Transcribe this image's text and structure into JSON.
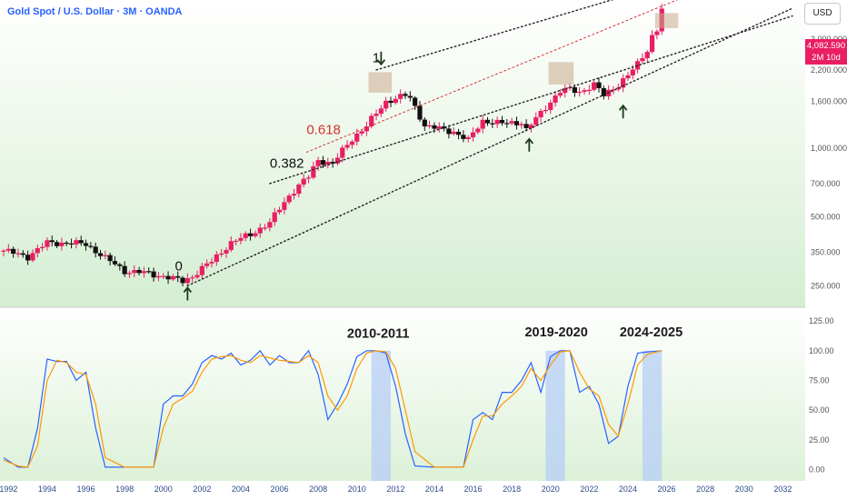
{
  "header": {
    "title": "Gold Spot / U.S. Dollar · 3M · OANDA",
    "currency": "USD",
    "last_price": "4,082.590",
    "countdown": "2M 10d"
  },
  "colors": {
    "up": "#e91e63",
    "down": "#111111",
    "stoch_k": "#2962ff",
    "stoch_d": "#ff9800",
    "highlight_box": "#c8a98a",
    "fib_red": "#d32f2f"
  },
  "chart_data": [
    {
      "type": "candlestick",
      "scale": "log",
      "title": "Gold Spot / U.S. Dollar · 3M · OANDA",
      "y_ticks": [
        "3,000.000",
        "2,200.000",
        "1,600.000",
        "1,000.000",
        "700.000",
        "500.000",
        "350.000",
        "250.000"
      ],
      "y_tick_values": [
        3000,
        2200,
        1600,
        1000,
        700,
        500,
        350,
        250
      ],
      "ylim": [
        205,
        4450
      ],
      "xlim": [
        1991.75,
        2032.5
      ],
      "x_ticks": [
        "1992",
        "1994",
        "1996",
        "1998",
        "2000",
        "2002",
        "2004",
        "2006",
        "2008",
        "2010",
        "2012",
        "2014",
        "2016",
        "2018",
        "2020",
        "2022",
        "2024",
        "2026",
        "2028",
        "2030",
        "2032"
      ],
      "x_tick_values": [
        1992,
        1994,
        1996,
        1998,
        2000,
        2002,
        2004,
        2006,
        2008,
        2010,
        2012,
        2014,
        2016,
        2018,
        2020,
        2022,
        2024,
        2026,
        2028,
        2030,
        2032
      ],
      "close_anchors": [
        [
          1991.75,
          356
        ],
        [
          1993.0,
          335
        ],
        [
          1994.0,
          385
        ],
        [
          1995.0,
          385
        ],
        [
          1996.0,
          380
        ],
        [
          1997.0,
          330
        ],
        [
          1998.0,
          290
        ],
        [
          1999.0,
          285
        ],
        [
          2000.0,
          275
        ],
        [
          2001.0,
          262
        ],
        [
          2001.5,
          275
        ],
        [
          2002.5,
          320
        ],
        [
          2003.5,
          385
        ],
        [
          2004.5,
          420
        ],
        [
          2005.5,
          470
        ],
        [
          2006.5,
          620
        ],
        [
          2007.5,
          750
        ],
        [
          2008.0,
          890
        ],
        [
          2008.75,
          850
        ],
        [
          2009.75,
          1100
        ],
        [
          2010.5,
          1250
        ],
        [
          2011.0,
          1420
        ],
        [
          2011.5,
          1600
        ],
        [
          2012.5,
          1700
        ],
        [
          2012.75,
          1650
        ],
        [
          2013.5,
          1250
        ],
        [
          2015.0,
          1180
        ],
        [
          2015.75,
          1080
        ],
        [
          2016.5,
          1320
        ],
        [
          2017.5,
          1280
        ],
        [
          2018.5,
          1300
        ],
        [
          2018.75,
          1200
        ],
        [
          2019.5,
          1420
        ],
        [
          2020.5,
          1780
        ],
        [
          2021.0,
          1800
        ],
        [
          2021.5,
          1760
        ],
        [
          2022.25,
          1900
        ],
        [
          2022.75,
          1700
        ],
        [
          2023.5,
          1900
        ],
        [
          2024.0,
          2080
        ],
        [
          2024.5,
          2330
        ],
        [
          2025.0,
          2700
        ],
        [
          2025.25,
          3100
        ],
        [
          2025.5,
          3300
        ],
        [
          2025.75,
          4082
        ]
      ],
      "fib_labels": [
        {
          "text": "0",
          "x": 2000.6,
          "y": 292
        },
        {
          "text": "0.382",
          "x": 2005.5,
          "y": 820
        },
        {
          "text": "0.618",
          "x": 2007.4,
          "y": 1150
        },
        {
          "text": "1",
          "x": 2010.8,
          "y": 2380
        }
      ],
      "arrows": [
        {
          "dir": "up",
          "x": 2001.25,
          "y": 230
        },
        {
          "dir": "down",
          "x": 2011.25,
          "y": 2480
        },
        {
          "dir": "up",
          "x": 2018.9,
          "y": 1030
        },
        {
          "dir": "up",
          "x": 2023.75,
          "y": 1440
        }
      ],
      "boxes": [
        {
          "x0": 2010.6,
          "x1": 2011.8,
          "y0": 1750,
          "y1": 2150
        },
        {
          "x0": 2019.9,
          "x1": 2021.2,
          "y0": 1900,
          "y1": 2380
        },
        {
          "x0": 2025.4,
          "x1": 2026.6,
          "y0": 3350,
          "y1": 3900
        }
      ],
      "channel_lines": [
        {
          "name": "lower",
          "style": "dotted-black",
          "p1": [
            2001.25,
            250
          ],
          "p2": [
            2018.5,
            1170
          ]
        },
        {
          "name": "middle",
          "style": "dotted-black",
          "p1": [
            2005.5,
            700
          ],
          "p2": [
            2016,
            1350
          ]
        },
        {
          "name": "upper",
          "style": "dotted-black",
          "p1": [
            2011.0,
            2200
          ],
          "p2": [
            2025.5,
            5100
          ]
        },
        {
          "name": "fib-618",
          "style": "dotted-red",
          "p1": [
            2007.4,
            960
          ],
          "p2": [
            2025.5,
            4100
          ]
        }
      ]
    },
    {
      "type": "line",
      "title": "",
      "y_ticks": [
        "125.00",
        "100.00",
        "75.00",
        "50.00",
        "25.00",
        "0.00"
      ],
      "y_tick_values": [
        125,
        100,
        75,
        50,
        25,
        0
      ],
      "ylim": [
        -8,
        132
      ],
      "annotations": [
        {
          "text": "2010-2011",
          "x": 2011.1,
          "y": 111
        },
        {
          "text": "2019-2020",
          "x": 2020.3,
          "y": 112
        },
        {
          "text": "2024-2025",
          "x": 2025.2,
          "y": 112
        }
      ],
      "highlight_bands": [
        {
          "x0": 2010.75,
          "x1": 2011.75
        },
        {
          "x0": 2019.75,
          "x1": 2020.75
        },
        {
          "x0": 2024.75,
          "x1": 2025.75
        }
      ],
      "series": [
        {
          "key": "K",
          "anchors": [
            [
              1991.75,
              10
            ],
            [
              1992.5,
              2
            ],
            [
              1993.0,
              2
            ],
            [
              1993.5,
              35
            ],
            [
              1994.0,
              93
            ],
            [
              1994.5,
              91
            ],
            [
              1995.0,
              91
            ],
            [
              1995.5,
              75
            ],
            [
              1996.0,
              82
            ],
            [
              1996.5,
              35
            ],
            [
              1997.0,
              2
            ],
            [
              1998.0,
              2
            ],
            [
              1999.0,
              2
            ],
            [
              1999.5,
              2
            ],
            [
              2000.0,
              55
            ],
            [
              2000.5,
              62
            ],
            [
              2001.0,
              62
            ],
            [
              2001.5,
              72
            ],
            [
              2002.0,
              90
            ],
            [
              2002.5,
              96
            ],
            [
              2003.0,
              93
            ],
            [
              2003.5,
              98
            ],
            [
              2004.0,
              88
            ],
            [
              2004.5,
              92
            ],
            [
              2005.0,
              100
            ],
            [
              2005.5,
              88
            ],
            [
              2006.0,
              96
            ],
            [
              2006.5,
              90
            ],
            [
              2007.0,
              90
            ],
            [
              2007.5,
              100
            ],
            [
              2008.0,
              80
            ],
            [
              2008.5,
              42
            ],
            [
              2009.0,
              55
            ],
            [
              2009.5,
              72
            ],
            [
              2010.0,
              95
            ],
            [
              2010.5,
              100
            ],
            [
              2011.0,
              100
            ],
            [
              2011.5,
              98
            ],
            [
              2012.0,
              70
            ],
            [
              2012.5,
              30
            ],
            [
              2013.0,
              3
            ],
            [
              2014.0,
              2
            ],
            [
              2015.0,
              2
            ],
            [
              2015.5,
              2
            ],
            [
              2016.0,
              42
            ],
            [
              2016.5,
              48
            ],
            [
              2017.0,
              42
            ],
            [
              2017.5,
              65
            ],
            [
              2018.0,
              65
            ],
            [
              2018.5,
              75
            ],
            [
              2019.0,
              90
            ],
            [
              2019.5,
              65
            ],
            [
              2020.0,
              95
            ],
            [
              2020.5,
              100
            ],
            [
              2021.0,
              100
            ],
            [
              2021.5,
              65
            ],
            [
              2022.0,
              70
            ],
            [
              2022.5,
              55
            ],
            [
              2023.0,
              22
            ],
            [
              2023.5,
              28
            ],
            [
              2024.0,
              70
            ],
            [
              2024.5,
              98
            ],
            [
              2025.0,
              99
            ],
            [
              2025.75,
              100
            ]
          ]
        },
        {
          "key": "D",
          "anchors": [
            [
              1991.75,
              8
            ],
            [
              1992.5,
              3
            ],
            [
              1993.0,
              2
            ],
            [
              1993.5,
              20
            ],
            [
              1994.0,
              75
            ],
            [
              1994.5,
              92
            ],
            [
              1995.0,
              90
            ],
            [
              1995.5,
              82
            ],
            [
              1996.0,
              80
            ],
            [
              1996.5,
              55
            ],
            [
              1997.0,
              10
            ],
            [
              1998.0,
              2
            ],
            [
              1999.0,
              2
            ],
            [
              1999.5,
              2
            ],
            [
              2000.0,
              35
            ],
            [
              2000.5,
              55
            ],
            [
              2001.0,
              60
            ],
            [
              2001.5,
              66
            ],
            [
              2002.0,
              82
            ],
            [
              2002.5,
              93
            ],
            [
              2003.0,
              95
            ],
            [
              2003.5,
              96
            ],
            [
              2004.0,
              92
            ],
            [
              2004.5,
              90
            ],
            [
              2005.0,
              96
            ],
            [
              2005.5,
              94
            ],
            [
              2006.0,
              92
            ],
            [
              2006.5,
              91
            ],
            [
              2007.0,
              90
            ],
            [
              2007.5,
              96
            ],
            [
              2008.0,
              90
            ],
            [
              2008.5,
              62
            ],
            [
              2009.0,
              50
            ],
            [
              2009.5,
              62
            ],
            [
              2010.0,
              85
            ],
            [
              2010.5,
              98
            ],
            [
              2011.0,
              100
            ],
            [
              2011.5,
              99
            ],
            [
              2012.0,
              85
            ],
            [
              2012.5,
              50
            ],
            [
              2013.0,
              15
            ],
            [
              2014.0,
              2
            ],
            [
              2015.0,
              2
            ],
            [
              2015.5,
              2
            ],
            [
              2016.0,
              25
            ],
            [
              2016.5,
              45
            ],
            [
              2017.0,
              45
            ],
            [
              2017.5,
              55
            ],
            [
              2018.0,
              62
            ],
            [
              2018.5,
              70
            ],
            [
              2019.0,
              85
            ],
            [
              2019.5,
              75
            ],
            [
              2020.0,
              88
            ],
            [
              2020.5,
              99
            ],
            [
              2021.0,
              100
            ],
            [
              2021.5,
              82
            ],
            [
              2022.0,
              68
            ],
            [
              2022.5,
              62
            ],
            [
              2023.0,
              38
            ],
            [
              2023.5,
              28
            ],
            [
              2024.0,
              55
            ],
            [
              2024.5,
              88
            ],
            [
              2025.0,
              97
            ],
            [
              2025.75,
              100
            ]
          ]
        }
      ]
    }
  ]
}
